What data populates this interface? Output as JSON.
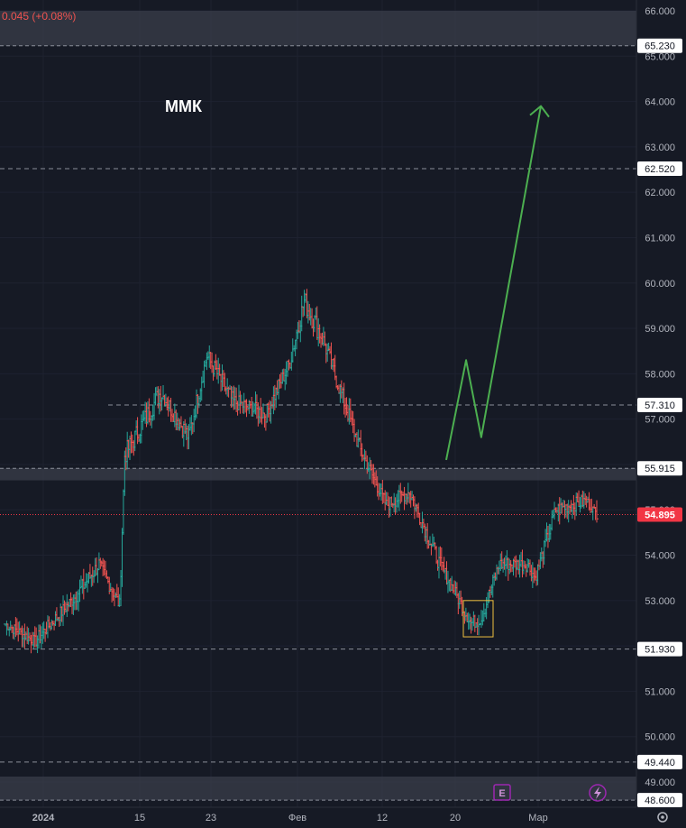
{
  "header": {
    "change_text": "0.045 (+0.08%)"
  },
  "title": "ММК",
  "colors": {
    "background": "#161a25",
    "grid": "#1e2230",
    "axis_text": "#b2b5be",
    "up": "#26a69a",
    "down": "#ef5350",
    "zone": "#3a3e4a",
    "level_line": "#8a8e99",
    "arrow": "#4caf50",
    "highlight_box": "#f0c040",
    "current_price": "#f23645",
    "event_icon": "#9c27b0"
  },
  "axis": {
    "y_ticks": [
      "66.000",
      "65.000",
      "64.000",
      "63.000",
      "62.000",
      "61.000",
      "60.000",
      "59.000",
      "58.000",
      "57.000",
      "56.000",
      "55.000",
      "54.000",
      "53.000",
      "52.000",
      "51.000",
      "50.000",
      "49.000"
    ],
    "x_labels": [
      "2024",
      "15",
      "23",
      "Фев",
      "12",
      "20",
      "Мар"
    ]
  },
  "levels": [
    {
      "label": "65.230",
      "kind": "zone",
      "value": 65.23
    },
    {
      "label": "62.520",
      "kind": "line",
      "value": 62.52
    },
    {
      "label": "57.310",
      "kind": "line",
      "value": 57.31
    },
    {
      "label": "55.915",
      "kind": "zone",
      "value": 55.915
    },
    {
      "label": "51.930",
      "kind": "line",
      "value": 51.93
    },
    {
      "label": "49.440",
      "kind": "line",
      "value": 49.44
    },
    {
      "label": "48.600",
      "kind": "zone",
      "value": 48.6
    }
  ],
  "current_price": {
    "label": "54.895",
    "value": 54.895
  },
  "chart_data": {
    "type": "ohlc",
    "title": "ММК",
    "ylim": [
      48.4,
      66.2
    ],
    "x_labels": [
      "2024",
      "15",
      "23",
      "Фев",
      "12",
      "20",
      "Мар"
    ],
    "segments": [
      {
        "n": 24,
        "start": 52.5,
        "end": 52.1,
        "noise": 0.25
      },
      {
        "n": 32,
        "start": 52.1,
        "end": 53.1,
        "noise": 0.3
      },
      {
        "n": 18,
        "start": 53.1,
        "end": 53.8,
        "noise": 0.35
      },
      {
        "n": 16,
        "start": 53.8,
        "end": 52.9,
        "noise": 0.3
      },
      {
        "n": 4,
        "start": 52.9,
        "end": 56.2,
        "noise": 0.4
      },
      {
        "n": 28,
        "start": 56.2,
        "end": 57.6,
        "noise": 0.45
      },
      {
        "n": 22,
        "start": 57.6,
        "end": 56.6,
        "noise": 0.4
      },
      {
        "n": 14,
        "start": 56.6,
        "end": 58.4,
        "noise": 0.4
      },
      {
        "n": 20,
        "start": 58.4,
        "end": 57.4,
        "noise": 0.4
      },
      {
        "n": 26,
        "start": 57.4,
        "end": 57.1,
        "noise": 0.35
      },
      {
        "n": 18,
        "start": 57.1,
        "end": 58.2,
        "noise": 0.35
      },
      {
        "n": 12,
        "start": 58.2,
        "end": 59.6,
        "noise": 0.45
      },
      {
        "n": 14,
        "start": 59.6,
        "end": 58.8,
        "noise": 0.5
      },
      {
        "n": 30,
        "start": 58.8,
        "end": 56.3,
        "noise": 0.4
      },
      {
        "n": 20,
        "start": 56.3,
        "end": 55.1,
        "noise": 0.3
      },
      {
        "n": 18,
        "start": 55.1,
        "end": 55.4,
        "noise": 0.3
      },
      {
        "n": 22,
        "start": 55.4,
        "end": 53.9,
        "noise": 0.35
      },
      {
        "n": 26,
        "start": 53.9,
        "end": 52.5,
        "noise": 0.3
      },
      {
        "n": 8,
        "start": 52.5,
        "end": 52.6,
        "noise": 0.3
      },
      {
        "n": 14,
        "start": 52.6,
        "end": 53.8,
        "noise": 0.35
      },
      {
        "n": 22,
        "start": 53.8,
        "end": 53.8,
        "noise": 0.3
      },
      {
        "n": 6,
        "start": 53.8,
        "end": 53.5,
        "noise": 0.3
      },
      {
        "n": 16,
        "start": 53.5,
        "end": 55.0,
        "noise": 0.3
      },
      {
        "n": 24,
        "start": 55.0,
        "end": 55.2,
        "noise": 0.3
      },
      {
        "n": 8,
        "start": 55.2,
        "end": 54.9,
        "noise": 0.2
      }
    ],
    "projection_arrow": [
      {
        "x_frac": 0.0,
        "y": 56.1
      },
      {
        "x_frac": 0.21,
        "y": 58.3
      },
      {
        "x_frac": 0.37,
        "y": 56.6
      },
      {
        "x_frac": 1.0,
        "y": 63.9
      }
    ],
    "highlight_box": {
      "y_low": 52.2,
      "y_high": 53.0
    }
  }
}
